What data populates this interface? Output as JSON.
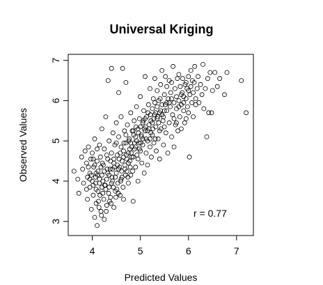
{
  "chart_data": {
    "type": "scatter",
    "title": "Universal Kriging",
    "xlabel": "Predicted Values",
    "ylabel": "Observed Values",
    "xlim": [
      3.5,
      7.35
    ],
    "ylim": [
      2.65,
      7.15
    ],
    "xticks": [
      4,
      5,
      6,
      7
    ],
    "yticks": [
      3,
      4,
      5,
      6,
      7
    ],
    "grid": false,
    "annotation": "r = 0.77",
    "points": [
      [
        3.62,
        4.25
      ],
      [
        3.7,
        4.05
      ],
      [
        3.72,
        3.7
      ],
      [
        3.78,
        4.6
      ],
      [
        3.8,
        4.3
      ],
      [
        3.82,
        3.95
      ],
      [
        3.85,
        4.75
      ],
      [
        3.88,
        4.45
      ],
      [
        3.9,
        4.1
      ],
      [
        3.9,
        3.55
      ],
      [
        3.92,
        4.85
      ],
      [
        3.95,
        4.2
      ],
      [
        3.95,
        3.85
      ],
      [
        3.97,
        4.55
      ],
      [
        3.98,
        3.3
      ],
      [
        4.0,
        4.0
      ],
      [
        4.0,
        4.7
      ],
      [
        4.02,
        3.65
      ],
      [
        4.03,
        4.35
      ],
      [
        4.05,
        5.05
      ],
      [
        4.05,
        3.1
      ],
      [
        4.07,
        4.1
      ],
      [
        4.08,
        3.8
      ],
      [
        4.1,
        4.5
      ],
      [
        4.1,
        2.9
      ],
      [
        4.12,
        4.25
      ],
      [
        4.13,
        3.5
      ],
      [
        4.15,
        4.9
      ],
      [
        4.15,
        3.95
      ],
      [
        4.17,
        4.6
      ],
      [
        4.18,
        3.25
      ],
      [
        4.2,
        4.15
      ],
      [
        4.2,
        5.3
      ],
      [
        4.22,
        3.7
      ],
      [
        4.23,
        4.4
      ],
      [
        4.25,
        3.05
      ],
      [
        4.25,
        4.8
      ],
      [
        4.27,
        3.9
      ],
      [
        4.28,
        5.6
      ],
      [
        4.3,
        4.05
      ],
      [
        4.3,
        3.4
      ],
      [
        4.32,
        4.55
      ],
      [
        4.33,
        6.5
      ],
      [
        4.35,
        3.85
      ],
      [
        4.35,
        5.0
      ],
      [
        4.37,
        4.3
      ],
      [
        4.38,
        3.6
      ],
      [
        4.4,
        4.7
      ],
      [
        4.4,
        6.8
      ],
      [
        4.42,
        4.0
      ],
      [
        4.43,
        5.2
      ],
      [
        4.45,
        3.35
      ],
      [
        4.45,
        4.45
      ],
      [
        4.47,
        4.9
      ],
      [
        4.48,
        3.75
      ],
      [
        4.5,
        4.2
      ],
      [
        4.5,
        5.45
      ],
      [
        4.52,
        4.65
      ],
      [
        4.53,
        3.95
      ],
      [
        4.55,
        5.1
      ],
      [
        4.55,
        6.2
      ],
      [
        4.57,
        4.35
      ],
      [
        4.58,
        3.65
      ],
      [
        4.6,
        4.85
      ],
      [
        4.6,
        5.6
      ],
      [
        4.62,
        4.1
      ],
      [
        4.63,
        6.8
      ],
      [
        4.65,
        4.6
      ],
      [
        4.65,
        3.55
      ],
      [
        4.67,
        5.25
      ],
      [
        4.68,
        4.4
      ],
      [
        4.7,
        4.95
      ],
      [
        4.7,
        6.45
      ],
      [
        4.72,
        4.25
      ],
      [
        4.73,
        5.4
      ],
      [
        4.75,
        4.7
      ],
      [
        4.75,
        3.95
      ],
      [
        4.77,
        5.05
      ],
      [
        4.78,
        4.5
      ],
      [
        4.8,
        5.7
      ],
      [
        4.8,
        4.15
      ],
      [
        4.82,
        4.85
      ],
      [
        4.83,
        5.25
      ],
      [
        4.85,
        3.5
      ],
      [
        4.85,
        4.6
      ],
      [
        4.87,
        5.5
      ],
      [
        4.88,
        4.8
      ],
      [
        4.9,
        5.1
      ],
      [
        4.9,
        4.35
      ],
      [
        4.92,
        5.85
      ],
      [
        4.93,
        4.65
      ],
      [
        4.95,
        5.3
      ],
      [
        4.95,
        4.0
      ],
      [
        4.97,
        4.95
      ],
      [
        4.98,
        5.55
      ],
      [
        5.0,
        4.75
      ],
      [
        5.0,
        6.1
      ],
      [
        5.02,
        5.15
      ],
      [
        5.03,
        4.45
      ],
      [
        5.05,
        5.45
      ],
      [
        5.05,
        4.9
      ],
      [
        5.07,
        5.75
      ],
      [
        5.08,
        4.2
      ],
      [
        5.1,
        5.25
      ],
      [
        5.1,
        6.6
      ],
      [
        5.12,
        4.7
      ],
      [
        5.13,
        5.6
      ],
      [
        5.15,
        5.0
      ],
      [
        5.15,
        4.4
      ],
      [
        5.17,
        5.9
      ],
      [
        5.18,
        5.3
      ],
      [
        5.2,
        4.85
      ],
      [
        5.2,
        6.3
      ],
      [
        5.22,
        5.5
      ],
      [
        5.23,
        4.6
      ],
      [
        5.25,
        5.8
      ],
      [
        5.25,
        5.15
      ],
      [
        5.27,
        6.05
      ],
      [
        5.28,
        4.95
      ],
      [
        5.3,
        5.65
      ],
      [
        5.3,
        6.55
      ],
      [
        5.32,
        5.35
      ],
      [
        5.33,
        4.75
      ],
      [
        5.35,
        6.25
      ],
      [
        5.35,
        5.55
      ],
      [
        5.37,
        5.05
      ],
      [
        5.38,
        6.0
      ],
      [
        5.4,
        5.7
      ],
      [
        5.4,
        4.55
      ],
      [
        5.42,
        6.4
      ],
      [
        5.43,
        5.3
      ],
      [
        5.45,
        5.9
      ],
      [
        5.45,
        6.75
      ],
      [
        5.47,
        5.5
      ],
      [
        5.48,
        4.9
      ],
      [
        5.5,
        6.15
      ],
      [
        5.5,
        5.75
      ],
      [
        5.52,
        6.6
      ],
      [
        5.53,
        5.2
      ],
      [
        5.55,
        6.35
      ],
      [
        5.55,
        5.95
      ],
      [
        5.57,
        4.7
      ],
      [
        5.58,
        6.05
      ],
      [
        5.6,
        5.45
      ],
      [
        5.6,
        6.5
      ],
      [
        5.62,
        5.85
      ],
      [
        5.63,
        6.2
      ],
      [
        5.65,
        5.1
      ],
      [
        5.65,
        6.45
      ],
      [
        5.67,
        5.65
      ],
      [
        5.68,
        6.85
      ],
      [
        5.7,
        5.95
      ],
      [
        5.7,
        4.85
      ],
      [
        5.72,
        6.3
      ],
      [
        5.73,
        5.4
      ],
      [
        5.75,
        6.1
      ],
      [
        5.75,
        5.8
      ],
      [
        5.77,
        6.55
      ],
      [
        5.78,
        5.25
      ],
      [
        5.8,
        6.0
      ],
      [
        5.8,
        6.65
      ],
      [
        5.82,
        5.6
      ],
      [
        5.83,
        6.35
      ],
      [
        5.85,
        5.9
      ],
      [
        5.85,
        5.3
      ],
      [
        5.87,
        6.2
      ],
      [
        5.88,
        6.55
      ],
      [
        5.9,
        5.75
      ],
      [
        5.9,
        6.1
      ],
      [
        5.92,
        5.45
      ],
      [
        5.93,
        6.4
      ],
      [
        5.95,
        6.05
      ],
      [
        5.95,
        5.55
      ],
      [
        5.97,
        6.3
      ],
      [
        5.98,
        5.85
      ],
      [
        6.0,
        6.6
      ],
      [
        6.0,
        5.7
      ],
      [
        6.02,
        4.6
      ],
      [
        6.03,
        6.15
      ],
      [
        6.05,
        6.75
      ],
      [
        6.05,
        6.35
      ],
      [
        6.07,
        5.95
      ],
      [
        6.08,
        6.5
      ],
      [
        6.1,
        6.2
      ],
      [
        6.1,
        5.6
      ],
      [
        6.12,
        6.45
      ],
      [
        6.13,
        6.85
      ],
      [
        6.15,
        6.05
      ],
      [
        6.15,
        5.9
      ],
      [
        6.18,
        6.3
      ],
      [
        6.2,
        6.6
      ],
      [
        6.22,
        5.95
      ],
      [
        6.25,
        6.4
      ],
      [
        6.28,
        6.15
      ],
      [
        6.3,
        6.9
      ],
      [
        6.32,
        5.8
      ],
      [
        6.35,
        6.3
      ],
      [
        6.38,
        5.1
      ],
      [
        6.4,
        6.55
      ],
      [
        6.42,
        5.7
      ],
      [
        6.45,
        6.7
      ],
      [
        6.48,
        5.7
      ],
      [
        6.5,
        6.25
      ],
      [
        6.55,
        6.7
      ],
      [
        6.6,
        6.35
      ],
      [
        6.65,
        6.55
      ],
      [
        6.75,
        6.15
      ],
      [
        6.8,
        6.7
      ],
      [
        7.1,
        6.5
      ],
      [
        7.2,
        5.7
      ],
      [
        4.05,
        4.4
      ],
      [
        4.1,
        4.8
      ],
      [
        4.15,
        4.05
      ],
      [
        4.2,
        3.85
      ],
      [
        4.25,
        4.25
      ],
      [
        4.3,
        4.65
      ],
      [
        4.35,
        4.15
      ],
      [
        4.4,
        3.95
      ],
      [
        4.45,
        4.55
      ],
      [
        4.5,
        4.95
      ],
      [
        4.55,
        4.3
      ],
      [
        4.6,
        4.05
      ],
      [
        4.65,
        4.75
      ],
      [
        4.7,
        5.15
      ],
      [
        4.75,
        4.45
      ],
      [
        4.8,
        4.95
      ],
      [
        4.85,
        5.25
      ],
      [
        4.9,
        4.85
      ],
      [
        4.95,
        4.55
      ],
      [
        5.0,
        5.35
      ],
      [
        5.05,
        5.05
      ],
      [
        5.1,
        5.55
      ],
      [
        5.15,
        5.25
      ],
      [
        5.2,
        5.05
      ],
      [
        5.25,
        5.45
      ],
      [
        5.3,
        5.95
      ],
      [
        5.35,
        5.85
      ],
      [
        5.4,
        5.25
      ],
      [
        5.45,
        5.65
      ],
      [
        5.5,
        5.35
      ],
      [
        5.55,
        5.75
      ],
      [
        5.6,
        5.95
      ],
      [
        5.65,
        6.05
      ],
      [
        5.7,
        5.55
      ],
      [
        5.75,
        5.45
      ],
      [
        5.8,
        5.85
      ],
      [
        5.85,
        6.15
      ],
      [
        5.9,
        5.95
      ],
      [
        5.95,
        6.45
      ],
      [
        6.0,
        6.25
      ],
      [
        3.95,
        4.05
      ],
      [
        4.02,
        3.9
      ],
      [
        4.08,
        4.2
      ],
      [
        4.12,
        3.75
      ],
      [
        4.18,
        4.35
      ],
      [
        4.22,
        4.0
      ],
      [
        4.28,
        3.8
      ],
      [
        4.32,
        4.2
      ],
      [
        4.38,
        4.5
      ],
      [
        4.42,
        4.3
      ],
      [
        4.48,
        4.1
      ],
      [
        4.52,
        4.4
      ],
      [
        4.58,
        4.7
      ],
      [
        4.62,
        4.5
      ],
      [
        4.68,
        4.3
      ],
      [
        4.72,
        4.55
      ],
      [
        4.78,
        4.8
      ],
      [
        4.82,
        4.6
      ],
      [
        4.88,
        4.95
      ],
      [
        4.92,
        5.0
      ],
      [
        4.98,
        4.8
      ],
      [
        5.02,
        5.1
      ],
      [
        5.08,
        5.3
      ],
      [
        5.12,
        5.05
      ],
      [
        5.18,
        5.4
      ],
      [
        5.22,
        5.2
      ],
      [
        5.28,
        5.55
      ],
      [
        5.32,
        5.7
      ],
      [
        5.38,
        5.45
      ],
      [
        5.42,
        5.75
      ],
      [
        5.48,
        5.6
      ],
      [
        5.52,
        5.9
      ],
      [
        3.88,
        3.8
      ],
      [
        3.92,
        4.35
      ],
      [
        3.98,
        4.15
      ],
      [
        4.02,
        4.55
      ],
      [
        4.07,
        3.95
      ],
      [
        4.11,
        4.15
      ],
      [
        4.16,
        3.65
      ],
      [
        4.21,
        4.45
      ],
      [
        4.26,
        3.9
      ],
      [
        4.31,
        4.3
      ],
      [
        4.36,
        3.5
      ],
      [
        4.41,
        4.1
      ],
      [
        4.46,
        4.35
      ],
      [
        4.51,
        3.8
      ],
      [
        4.56,
        4.55
      ],
      [
        4.61,
        4.25
      ],
      [
        4.66,
        4.95
      ],
      [
        4.71,
        4.65
      ],
      [
        4.76,
        5.0
      ],
      [
        4.81,
        4.7
      ],
      [
        4.86,
        5.15
      ],
      [
        4.91,
        5.35
      ],
      [
        4.96,
        5.2
      ],
      [
        5.01,
        4.95
      ],
      [
        5.06,
        5.5
      ],
      [
        5.11,
        5.35
      ],
      [
        5.16,
        5.7
      ],
      [
        5.21,
        5.65
      ],
      [
        5.26,
        5.3
      ],
      [
        5.31,
        5.05
      ],
      [
        5.36,
        5.6
      ],
      [
        5.41,
        6.05
      ],
      [
        4.08,
        3.45
      ],
      [
        4.14,
        3.35
      ],
      [
        4.19,
        3.15
      ],
      [
        4.24,
        3.55
      ],
      [
        4.29,
        3.25
      ],
      [
        4.34,
        3.7
      ],
      [
        4.39,
        3.45
      ],
      [
        4.44,
        3.85
      ],
      [
        4.49,
        3.6
      ],
      [
        4.54,
        3.7
      ],
      [
        4.59,
        4.0
      ],
      [
        4.64,
        3.85
      ],
      [
        4.69,
        4.15
      ],
      [
        4.74,
        4.1
      ],
      [
        4.79,
        4.35
      ],
      [
        4.84,
        4.25
      ]
    ]
  }
}
